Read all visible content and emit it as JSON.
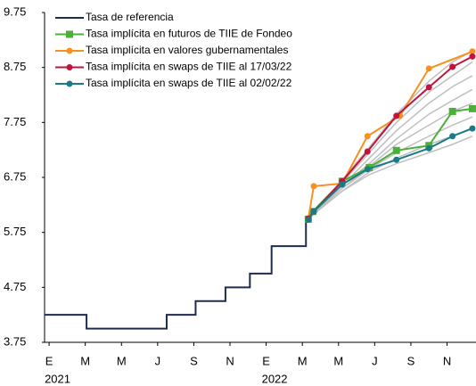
{
  "chart_data": {
    "type": "line",
    "xlim": [
      -0.25,
      23.6
    ],
    "ylim": [
      3.75,
      9.75
    ],
    "yticks": [
      9.75,
      8.75,
      7.75,
      6.75,
      5.75,
      4.75,
      3.75
    ],
    "xticks": [
      {
        "value": 0,
        "label": "E"
      },
      {
        "value": 2,
        "label": "M"
      },
      {
        "value": 4,
        "label": "M"
      },
      {
        "value": 6,
        "label": "J"
      },
      {
        "value": 8,
        "label": "S"
      },
      {
        "value": 10,
        "label": "N"
      },
      {
        "value": 12,
        "label": "E"
      },
      {
        "value": 14,
        "label": "M"
      },
      {
        "value": 16,
        "label": "M"
      },
      {
        "value": 18,
        "label": "J"
      },
      {
        "value": 20,
        "label": "S"
      },
      {
        "value": 22,
        "label": "N"
      }
    ],
    "year_labels": [
      {
        "value": 0,
        "label": "2021"
      },
      {
        "value": 12,
        "label": "2022"
      }
    ],
    "legend": "top-left",
    "series": [
      {
        "color": "#bfbfbf",
        "x": [
          14.33,
          16.2,
          17.7,
          19.2,
          21.0,
          22.3,
          23.4
        ],
        "values": [
          6.0,
          6.7,
          7.3,
          7.9,
          8.5,
          8.85,
          9.05
        ]
      },
      {
        "color": "#bfbfbf",
        "x": [
          14.33,
          16.2,
          17.7,
          19.2,
          21.0,
          22.3,
          23.4
        ],
        "values": [
          6.0,
          6.65,
          7.2,
          7.75,
          8.3,
          8.6,
          8.85
        ]
      },
      {
        "color": "#bfbfbf",
        "x": [
          14.33,
          16.2,
          17.7,
          19.2,
          21.0,
          22.3,
          23.4
        ],
        "values": [
          6.0,
          6.6,
          7.1,
          7.6,
          8.1,
          8.4,
          8.6
        ]
      },
      {
        "color": "#bfbfbf",
        "x": [
          14.33,
          16.2,
          17.7,
          19.2,
          21.0,
          22.3,
          23.4
        ],
        "values": [
          6.0,
          6.6,
          7.0,
          7.45,
          7.9,
          8.15,
          8.35
        ]
      },
      {
        "color": "#bfbfbf",
        "x": [
          14.33,
          16.2,
          17.7,
          19.2,
          21.0,
          22.3,
          23.4
        ],
        "values": [
          6.0,
          6.55,
          6.95,
          7.35,
          7.7,
          7.95,
          8.1
        ]
      },
      {
        "color": "#bfbfbf",
        "x": [
          14.33,
          16.2,
          17.7,
          19.2,
          21.0,
          22.3,
          23.4
        ],
        "values": [
          6.0,
          6.55,
          6.9,
          7.2,
          7.5,
          7.7,
          7.85
        ]
      },
      {
        "color": "#bfbfbf",
        "x": [
          14.33,
          16.2,
          17.7,
          19.2,
          21.0,
          22.3,
          23.4
        ],
        "values": [
          6.0,
          6.5,
          6.85,
          7.1,
          7.35,
          7.5,
          7.65
        ]
      },
      {
        "color": "#bfbfbf",
        "x": [
          14.33,
          16.2,
          17.7,
          19.2,
          21.0,
          22.3,
          23.4
        ],
        "values": [
          6.0,
          6.5,
          6.8,
          7.0,
          7.2,
          7.35,
          7.5
        ]
      },
      {
        "name": "Tasa de referencia",
        "color": "#1f2d4d",
        "x": [
          -0.25,
          2.07,
          2.07,
          6.5,
          6.5,
          8.1,
          8.1,
          9.75,
          9.75,
          11.1,
          11.1,
          12.3,
          12.3,
          14.2,
          14.2,
          14.33
        ],
        "values": [
          4.25,
          4.25,
          4.0,
          4.0,
          4.25,
          4.25,
          4.5,
          4.5,
          4.75,
          4.75,
          5.0,
          5.0,
          5.5,
          5.5,
          6.0,
          6.0
        ]
      },
      {
        "name": "Tasa implícita en futuros de TIIE de Fondeo",
        "color": "#4caf3a",
        "marker": "square",
        "x": [
          14.33,
          14.58,
          16.2,
          17.7,
          19.2,
          21.0,
          22.3,
          23.4
        ],
        "values": [
          5.99,
          6.13,
          6.68,
          6.93,
          7.24,
          7.33,
          7.95,
          8.0
        ]
      },
      {
        "name": "Tasa implícita en valores gubernamentales",
        "color": "#f7901e",
        "marker": "circle",
        "x": [
          14.33,
          14.63,
          16.2,
          17.6,
          19.4,
          21.0,
          23.4
        ],
        "values": [
          6.0,
          6.59,
          6.64,
          7.5,
          7.87,
          8.73,
          9.04
        ]
      },
      {
        "name": "Tasa implícita en swaps de TIIE al 17/03/22",
        "color": "#c0143c",
        "marker": "circle",
        "x": [
          14.33,
          14.63,
          16.2,
          17.6,
          19.2,
          21.0,
          22.3,
          23.4
        ],
        "values": [
          6.0,
          6.13,
          6.68,
          7.22,
          7.87,
          8.39,
          8.76,
          8.95
        ]
      },
      {
        "name": "Tasa implícita en swaps de TIIE al 02/02/22",
        "color": "#1a7a85",
        "marker": "circle",
        "x": [
          14.33,
          14.63,
          16.2,
          17.6,
          19.2,
          21.0,
          22.3,
          23.4
        ],
        "values": [
          5.98,
          6.13,
          6.62,
          6.9,
          7.07,
          7.28,
          7.5,
          7.64
        ]
      }
    ]
  }
}
